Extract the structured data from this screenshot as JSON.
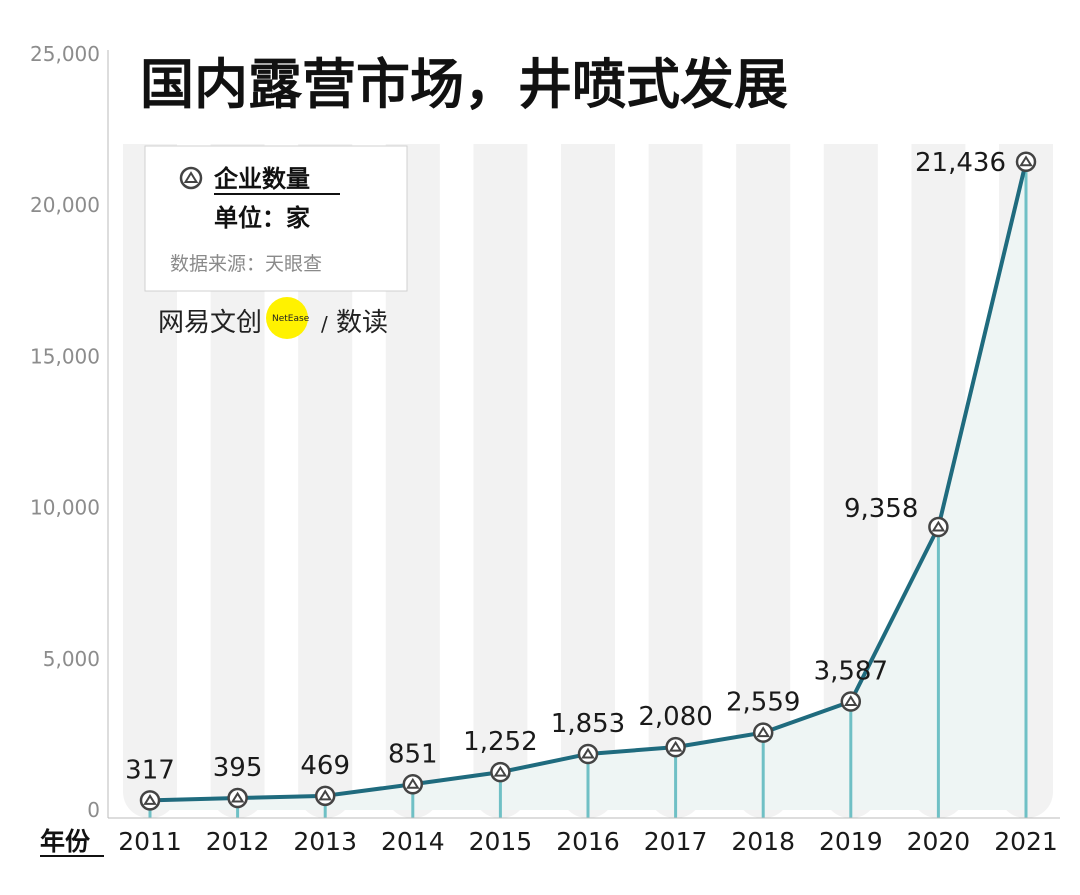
{
  "title": "国内露营市场，井喷式发展",
  "legend": {
    "series_label": "企业数量",
    "unit": "单位：家",
    "source": "数据来源：天眼查"
  },
  "logo": {
    "brand": "网易文创",
    "badge": "NetEase",
    "slash": "/",
    "product": "数读"
  },
  "colors": {
    "line": "#1f6b7e",
    "stem": "#6fc0c5",
    "band": "#f2f2f2",
    "area": "#eef5f4",
    "badge": "#fff200"
  },
  "chart_data": {
    "type": "line",
    "title": "国内露营市场，井喷式发展",
    "xlabel": "年份",
    "ylabel": "",
    "categories": [
      "2011",
      "2012",
      "2013",
      "2014",
      "2015",
      "2016",
      "2017",
      "2018",
      "2019",
      "2020",
      "2021"
    ],
    "series": [
      {
        "name": "企业数量",
        "values": [
          317,
          395,
          469,
          851,
          1252,
          1853,
          2080,
          2559,
          3587,
          9358,
          21436
        ]
      }
    ],
    "data_labels": [
      "317",
      "395",
      "469",
      "851",
      "1,252",
      "1,853",
      "2,080",
      "2,559",
      "3,587",
      "9,358",
      "21,436"
    ],
    "ylim": [
      0,
      25000
    ],
    "yticks": [
      0,
      5000,
      10000,
      15000,
      20000,
      25000
    ],
    "ytick_labels": [
      "0",
      "5,000",
      "10,000",
      "15,000",
      "20,000",
      "25,000"
    ],
    "grid": false,
    "legend_position": "top-left",
    "marker_icon": "tent-icon"
  }
}
